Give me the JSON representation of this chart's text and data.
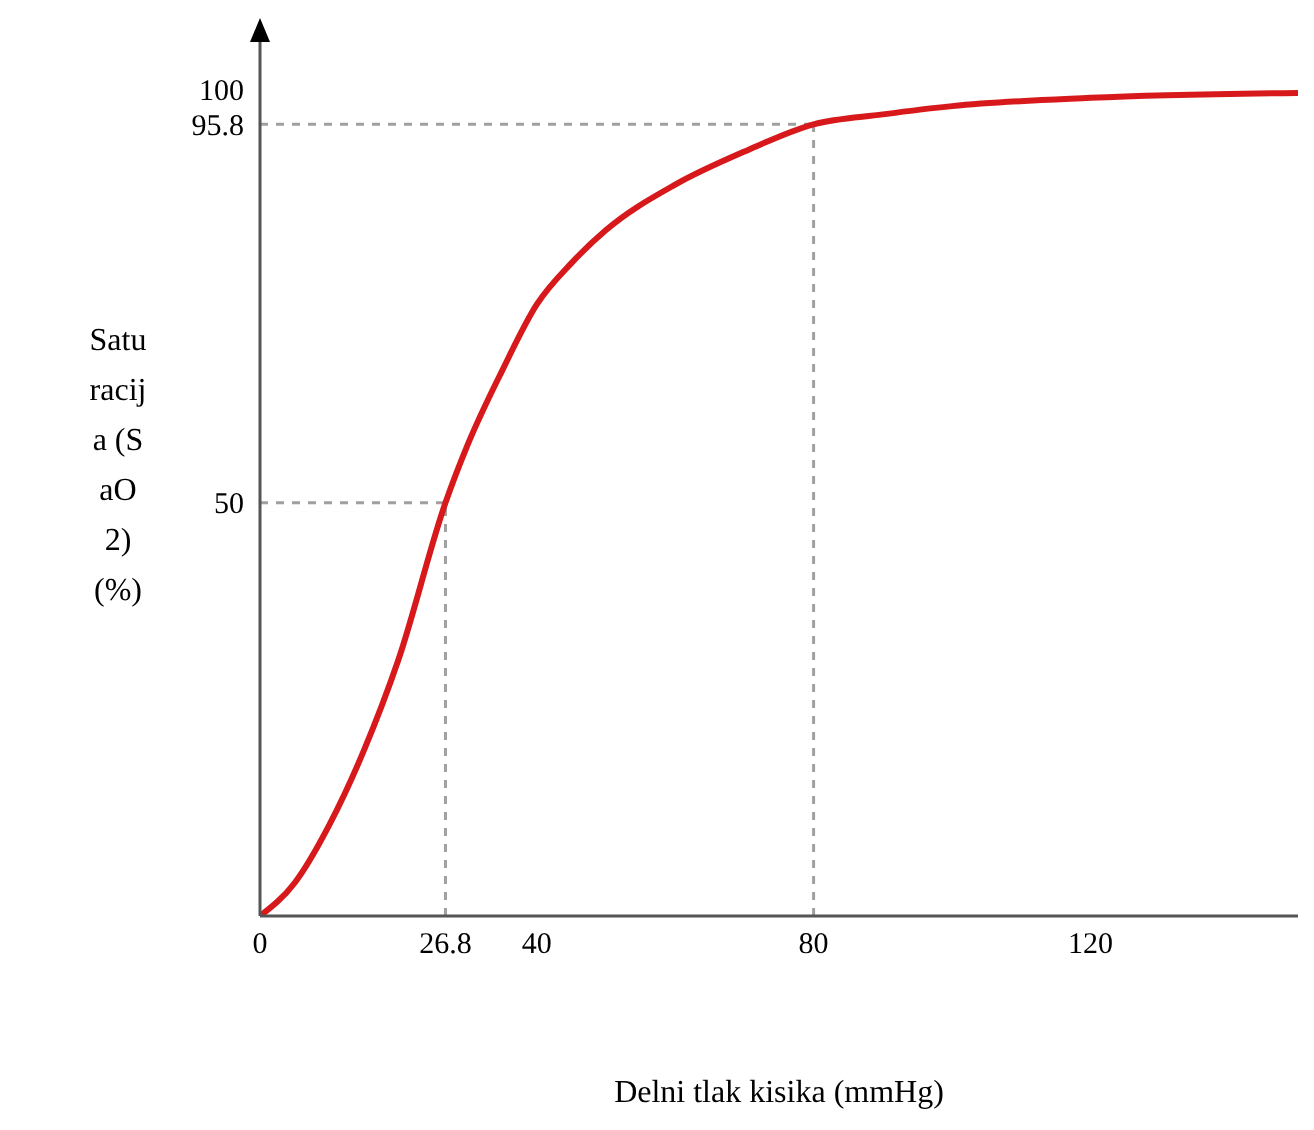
{
  "chart_data": {
    "type": "line",
    "xlabel": "Delni tlak kisika (mmHg)",
    "ylabel": "Saturacija (SaO2) (%)",
    "x": [
      0,
      5,
      10,
      15,
      20,
      26.8,
      30,
      35,
      40,
      45,
      50,
      60,
      70,
      80,
      90,
      100,
      120,
      150
    ],
    "series": [
      {
        "color": "#d7191c",
        "values": [
          0,
          4,
          11,
          20,
          31,
          50,
          57,
          66,
          74,
          79,
          83,
          88.5,
          92.5,
          95.8,
          97,
          98,
          99,
          99.6
        ]
      }
    ],
    "xlim": [
      0,
      150
    ],
    "ylim": [
      0,
      106
    ],
    "xticks": [
      0,
      26.8,
      40,
      80,
      120
    ],
    "yticks": [
      50,
      95.8,
      100
    ],
    "ref_lines": [
      {
        "axis": "x",
        "value": 26.8,
        "color": "#a0a0a0",
        "line_style": "dashed"
      },
      {
        "axis": "y",
        "value": 50,
        "color": "#a0a0a0",
        "line_style": "dashed"
      },
      {
        "axis": "x",
        "value": 80,
        "color": "#a0a0a0",
        "line_style": "dashed"
      },
      {
        "axis": "y",
        "value": 95.8,
        "color": "#a0a0a0",
        "line_style": "dashed"
      }
    ],
    "marker": "none",
    "line_style": "solid"
  }
}
